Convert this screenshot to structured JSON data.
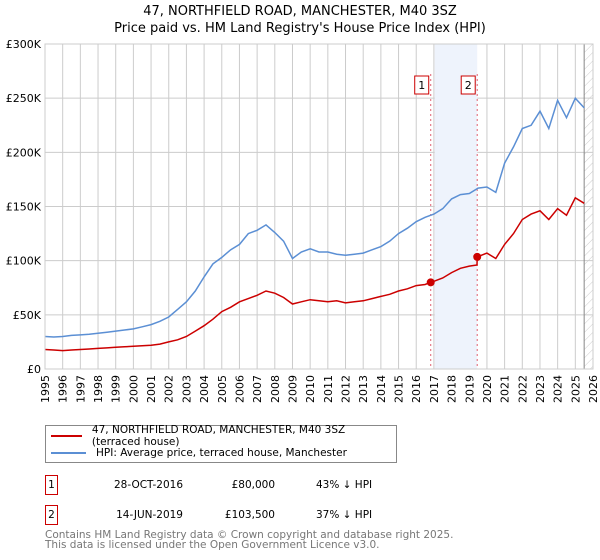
{
  "chart_data": {
    "type": "line",
    "title": "47, NORTHFIELD ROAD, MANCHESTER, M40 3SZ",
    "subtitle": "Price paid vs. HM Land Registry's House Price Index (HPI)",
    "xlim": [
      1995,
      2026
    ],
    "ylim": [
      0,
      300000
    ],
    "grid": true,
    "y_ticks": [
      0,
      50000,
      100000,
      150000,
      200000,
      250000,
      300000
    ],
    "y_tick_labels": [
      "£0",
      "£50K",
      "£100K",
      "£150K",
      "£200K",
      "£250K",
      "£300K"
    ],
    "x_ticks": [
      1995,
      1996,
      1997,
      1998,
      1999,
      2000,
      2001,
      2002,
      2003,
      2004,
      2005,
      2006,
      2007,
      2008,
      2009,
      2010,
      2011,
      2012,
      2013,
      2014,
      2015,
      2016,
      2017,
      2018,
      2019,
      2020,
      2021,
      2022,
      2023,
      2024,
      2025,
      2026
    ],
    "series": [
      {
        "name": "47, NORTHFIELD ROAD, MANCHESTER, M40 3SZ (terraced house)",
        "color": "#cc0000",
        "x": [
          1995,
          1995.5,
          1996,
          1996.5,
          1997,
          1997.5,
          1998,
          1998.5,
          1999,
          1999.5,
          2000,
          2000.5,
          2001,
          2001.5,
          2002,
          2002.5,
          2003,
          2003.5,
          2004,
          2004.5,
          2005,
          2005.5,
          2006,
          2006.5,
          2007,
          2007.5,
          2008,
          2008.5,
          2009,
          2009.5,
          2010,
          2010.5,
          2011,
          2011.5,
          2012,
          2012.5,
          2013,
          2013.5,
          2014,
          2014.5,
          2015,
          2015.5,
          2016,
          2016.5,
          2016.82,
          2017,
          2017.5,
          2018,
          2018.5,
          2019,
          2019.44,
          2019.45,
          2020,
          2020.5,
          2021,
          2021.5,
          2022,
          2022.5,
          2023,
          2023.5,
          2024,
          2024.5,
          2025,
          2025.5
        ],
        "y": [
          18000,
          17500,
          17000,
          17500,
          18000,
          18500,
          19000,
          19500,
          20000,
          20500,
          21000,
          21500,
          22000,
          23000,
          25000,
          27000,
          30000,
          35000,
          40000,
          46000,
          53000,
          57000,
          62000,
          65000,
          68000,
          72000,
          70000,
          66000,
          60000,
          62000,
          64000,
          63000,
          62000,
          63000,
          61000,
          62000,
          63000,
          65000,
          67000,
          69000,
          72000,
          74000,
          77000,
          78000,
          80000,
          81000,
          84000,
          89000,
          93000,
          95000,
          96000,
          103500,
          107000,
          102000,
          115000,
          125000,
          138000,
          143000,
          146000,
          138000,
          148000,
          142000,
          158000,
          153000
        ]
      },
      {
        "name": "HPI: Average price, terraced house, Manchester",
        "color": "#5b8fd4",
        "x": [
          1995,
          1995.5,
          1996,
          1996.5,
          1997,
          1997.5,
          1998,
          1998.5,
          1999,
          1999.5,
          2000,
          2000.5,
          2001,
          2001.5,
          2002,
          2002.5,
          2003,
          2003.5,
          2004,
          2004.5,
          2005,
          2005.5,
          2006,
          2006.5,
          2007,
          2007.5,
          2008,
          2008.5,
          2009,
          2009.5,
          2010,
          2010.5,
          2011,
          2011.5,
          2012,
          2012.5,
          2013,
          2013.5,
          2014,
          2014.5,
          2015,
          2015.5,
          2016,
          2016.5,
          2017,
          2017.5,
          2018,
          2018.5,
          2019,
          2019.5,
          2020,
          2020.5,
          2021,
          2021.5,
          2022,
          2022.5,
          2023,
          2023.5,
          2024,
          2024.5,
          2025,
          2025.5
        ],
        "y": [
          30000,
          29500,
          30000,
          31000,
          31500,
          32000,
          33000,
          34000,
          35000,
          36000,
          37000,
          39000,
          41000,
          44000,
          48000,
          55000,
          62000,
          72000,
          85000,
          97000,
          103000,
          110000,
          115000,
          125000,
          128000,
          133000,
          126000,
          118000,
          102000,
          108000,
          111000,
          108000,
          108000,
          106000,
          105000,
          106000,
          107000,
          110000,
          113000,
          118000,
          125000,
          130000,
          136000,
          140000,
          143000,
          148000,
          157000,
          161000,
          162000,
          167000,
          168000,
          163000,
          190000,
          205000,
          222000,
          225000,
          238000,
          222000,
          248000,
          232000,
          250000,
          241000
        ]
      }
    ],
    "sales": [
      {
        "num": "1",
        "x": 2016.82,
        "y": 80000,
        "date": "28-OCT-2016",
        "price": "£80,000",
        "hpi": "43% ↓ HPI"
      },
      {
        "num": "2",
        "x": 2019.45,
        "y": 103500,
        "date": "14-JUN-2019",
        "price": "£103,500",
        "hpi": "37% ↓ HPI"
      }
    ],
    "forecast_start": 2025.5,
    "legend_placement": "bottom"
  },
  "footer": {
    "line1": "Contains HM Land Registry data © Crown copyright and database right 2025.",
    "line2": "This data is licensed under the Open Government Licence v3.0."
  }
}
